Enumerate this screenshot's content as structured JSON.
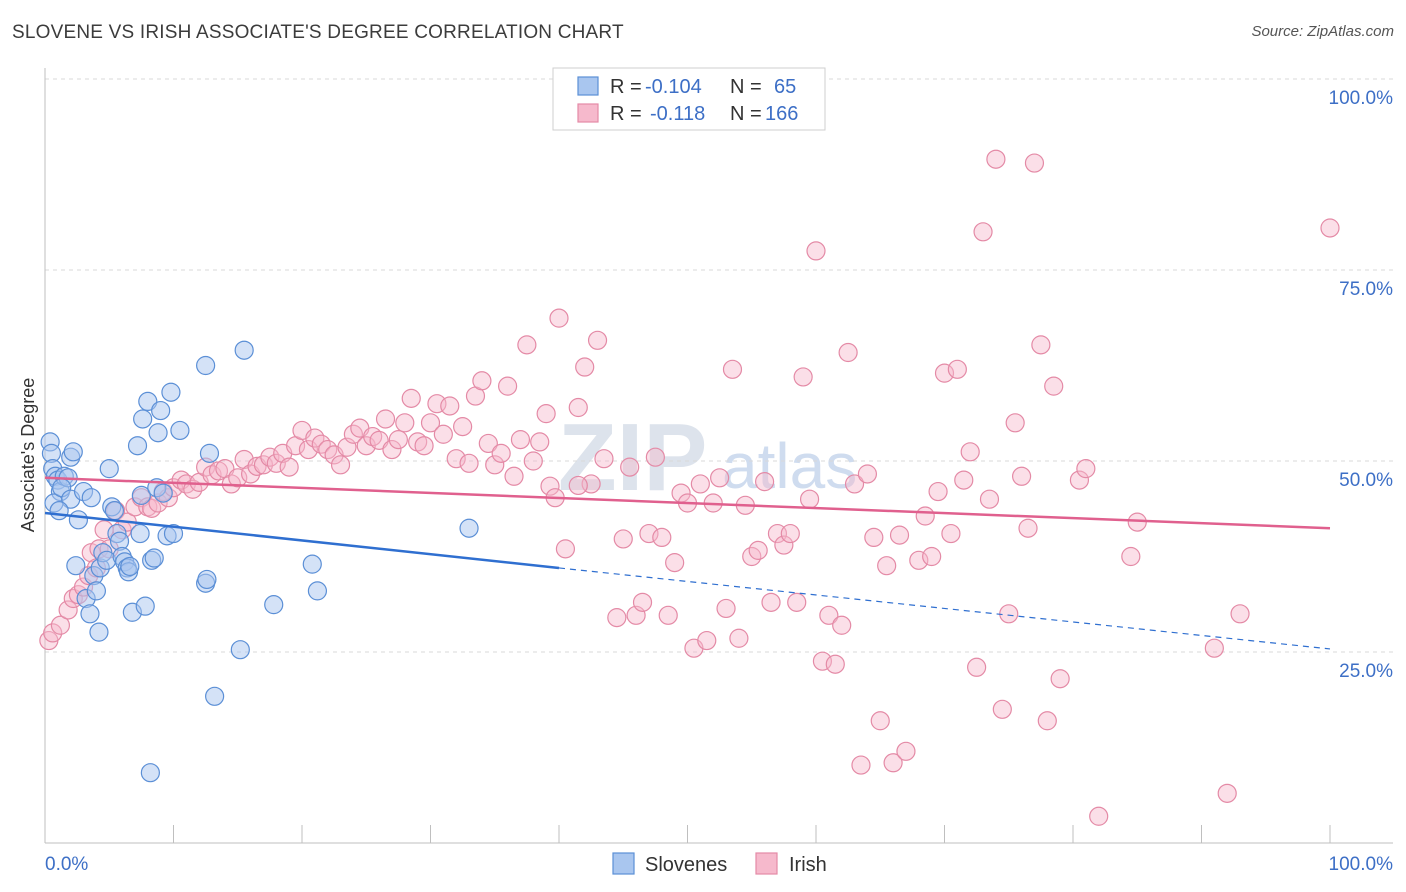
{
  "title": "SLOVENE VS IRISH ASSOCIATE'S DEGREE CORRELATION CHART",
  "source": "Source: ZipAtlas.com",
  "watermark": {
    "part1": "ZIP",
    "part2": "atlas"
  },
  "colors": {
    "blue_fill": "#a9c6ef",
    "blue_stroke": "#5b8fd6",
    "blue_line": "#2f6fd0",
    "pink_fill": "#f6b9cc",
    "pink_stroke": "#e48aa6",
    "pink_line": "#e0608e",
    "tick_text": "#3d6fc6",
    "grid": "#d9d9d9"
  },
  "legend": {
    "rows": [
      {
        "r_label": "R =",
        "r_value": "-0.104",
        "n_label": "N =",
        "n_value": "65",
        "series": "Slovenes"
      },
      {
        "r_label": "R =",
        "r_value": "-0.118",
        "n_label": "N =",
        "n_value": "166",
        "series": "Irish"
      }
    ]
  },
  "bottom_legend": [
    "Slovenes",
    "Irish"
  ],
  "chart_data": {
    "type": "scatter",
    "title": "SLOVENE VS IRISH ASSOCIATE'S DEGREE CORRELATION CHART",
    "xlabel": "",
    "ylabel": "Associate's Degree",
    "xlim": [
      0,
      100
    ],
    "ylim": [
      0,
      105
    ],
    "x_tick_labels": [
      "0.0%",
      "100.0%"
    ],
    "y_ticks": [
      25,
      50,
      75,
      100
    ],
    "y_tick_labels": [
      "25.0%",
      "50.0%",
      "75.0%",
      "100.0%"
    ],
    "series": [
      {
        "name": "Slovenes",
        "trend": {
          "x_solid": [
            0,
            40
          ],
          "y_solid": [
            43.2,
            36.0
          ],
          "x_dash": [
            40,
            100
          ],
          "y_dash": [
            36.0,
            25.4
          ]
        },
        "points": [
          [
            0.4,
            52.5
          ],
          [
            0.5,
            51
          ],
          [
            0.6,
            49
          ],
          [
            0.8,
            48
          ],
          [
            1,
            47.5
          ],
          [
            1.2,
            46
          ],
          [
            1.5,
            48
          ],
          [
            1.8,
            47.8
          ],
          [
            2,
            50.5
          ],
          [
            2.2,
            51.2
          ],
          [
            0.7,
            44.5
          ],
          [
            1.3,
            46.5
          ],
          [
            2,
            45
          ],
          [
            2.6,
            42.3
          ],
          [
            3,
            46
          ],
          [
            3.2,
            32
          ],
          [
            3.5,
            30
          ],
          [
            3.8,
            35
          ],
          [
            4,
            33
          ],
          [
            4.3,
            36
          ],
          [
            4.5,
            38
          ],
          [
            4.2,
            27.6
          ],
          [
            4.8,
            37
          ],
          [
            5,
            49
          ],
          [
            5.2,
            44
          ],
          [
            5.4,
            43.5
          ],
          [
            5.6,
            40.5
          ],
          [
            5.8,
            39.5
          ],
          [
            6,
            37.5
          ],
          [
            6.2,
            36.8
          ],
          [
            6.4,
            36
          ],
          [
            6.5,
            35.5
          ],
          [
            6.6,
            36.2
          ],
          [
            6.8,
            30.2
          ],
          [
            7.2,
            52
          ],
          [
            7.4,
            40.5
          ],
          [
            7.5,
            45.5
          ],
          [
            7.6,
            55.5
          ],
          [
            7.8,
            31
          ],
          [
            8,
            57.8
          ],
          [
            8.2,
            9.2
          ],
          [
            8.3,
            37
          ],
          [
            8.5,
            37.3
          ],
          [
            8.7,
            46.5
          ],
          [
            8.8,
            53.7
          ],
          [
            9,
            56.6
          ],
          [
            9.2,
            45.8
          ],
          [
            9.5,
            40.2
          ],
          [
            9.8,
            59
          ],
          [
            10,
            40.5
          ],
          [
            10.5,
            54
          ],
          [
            12.5,
            62.5
          ],
          [
            12.8,
            51
          ],
          [
            12.5,
            34
          ],
          [
            12.6,
            34.5
          ],
          [
            13.2,
            19.2
          ],
          [
            15.2,
            25.3
          ],
          [
            15.5,
            64.5
          ],
          [
            17.8,
            31.2
          ],
          [
            20.8,
            36.5
          ],
          [
            21.2,
            33
          ],
          [
            33,
            41.2
          ],
          [
            3.6,
            45.2
          ],
          [
            2.4,
            36.3
          ],
          [
            1.1,
            43.5
          ]
        ]
      },
      {
        "name": "Irish",
        "trend": {
          "x": [
            0,
            100
          ],
          "y": [
            47.8,
            41.2
          ]
        },
        "points": [
          [
            0.3,
            26.5
          ],
          [
            0.6,
            27.5
          ],
          [
            1.2,
            28.5
          ],
          [
            1.8,
            30.5
          ],
          [
            2.2,
            32
          ],
          [
            2.6,
            32.5
          ],
          [
            3,
            33.5
          ],
          [
            3.4,
            35
          ],
          [
            3.6,
            38
          ],
          [
            4,
            36
          ],
          [
            4.2,
            38.5
          ],
          [
            4.6,
            41
          ],
          [
            5,
            38.5
          ],
          [
            5.5,
            43.5
          ],
          [
            6,
            41
          ],
          [
            6.4,
            42
          ],
          [
            7,
            44
          ],
          [
            7.5,
            45.2
          ],
          [
            8,
            44
          ],
          [
            8.3,
            43.8
          ],
          [
            8.8,
            44.5
          ],
          [
            9.2,
            46
          ],
          [
            9.6,
            45.2
          ],
          [
            10,
            46.5
          ],
          [
            10.6,
            47.5
          ],
          [
            11,
            47
          ],
          [
            11.5,
            46.3
          ],
          [
            12,
            47.2
          ],
          [
            12.5,
            49.2
          ],
          [
            13,
            48.2
          ],
          [
            13.5,
            48.7
          ],
          [
            14,
            49
          ],
          [
            14.5,
            47
          ],
          [
            15,
            47.8
          ],
          [
            15.5,
            50.2
          ],
          [
            16,
            48.3
          ],
          [
            16.5,
            49.3
          ],
          [
            17,
            49.5
          ],
          [
            17.5,
            50.5
          ],
          [
            18,
            49.7
          ],
          [
            18.5,
            51
          ],
          [
            19,
            49.2
          ],
          [
            19.5,
            52
          ],
          [
            20,
            54
          ],
          [
            20.5,
            51.5
          ],
          [
            21,
            53
          ],
          [
            21.5,
            52.2
          ],
          [
            22,
            51.5
          ],
          [
            22.5,
            50.8
          ],
          [
            23,
            49.5
          ],
          [
            23.5,
            51.8
          ],
          [
            24,
            53.5
          ],
          [
            24.5,
            54.3
          ],
          [
            25,
            52
          ],
          [
            25.5,
            53.2
          ],
          [
            26,
            52.7
          ],
          [
            26.5,
            55.5
          ],
          [
            27,
            51.5
          ],
          [
            27.5,
            52.8
          ],
          [
            28,
            55
          ],
          [
            28.5,
            58.2
          ],
          [
            29,
            52.5
          ],
          [
            29.5,
            52
          ],
          [
            30,
            55
          ],
          [
            30.5,
            57.5
          ],
          [
            31,
            53.5
          ],
          [
            31.5,
            57.2
          ],
          [
            32,
            50.3
          ],
          [
            32.5,
            54.5
          ],
          [
            33,
            49.7
          ],
          [
            33.5,
            58.5
          ],
          [
            34,
            60.5
          ],
          [
            34.5,
            52.3
          ],
          [
            35,
            49.5
          ],
          [
            35.5,
            51
          ],
          [
            36,
            59.8
          ],
          [
            36.5,
            48
          ],
          [
            37,
            52.8
          ],
          [
            37.5,
            65.2
          ],
          [
            38,
            50
          ],
          [
            38.5,
            52.5
          ],
          [
            39,
            56.2
          ],
          [
            39.3,
            46.7
          ],
          [
            39.7,
            45.2
          ],
          [
            40,
            68.7
          ],
          [
            40.5,
            38.5
          ],
          [
            41.5,
            57
          ],
          [
            42,
            62.3
          ],
          [
            42.5,
            47
          ],
          [
            43,
            65.8
          ],
          [
            43.5,
            50.3
          ],
          [
            44.5,
            29.5
          ],
          [
            45,
            39.8
          ],
          [
            45.5,
            49.2
          ],
          [
            46,
            29.8
          ],
          [
            46.5,
            31.5
          ],
          [
            47,
            40.5
          ],
          [
            47.5,
            50.5
          ],
          [
            48,
            40
          ],
          [
            48.5,
            29.8
          ],
          [
            49,
            36.7
          ],
          [
            49.5,
            45.8
          ],
          [
            50,
            44.5
          ],
          [
            50.5,
            25.5
          ],
          [
            51,
            47
          ],
          [
            51.5,
            26.5
          ],
          [
            52,
            44.5
          ],
          [
            52.5,
            47.8
          ],
          [
            53,
            30.7
          ],
          [
            53.5,
            62
          ],
          [
            54,
            26.8
          ],
          [
            54.5,
            44.2
          ],
          [
            55,
            37.5
          ],
          [
            55.5,
            38.3
          ],
          [
            56,
            47.3
          ],
          [
            56.5,
            31.5
          ],
          [
            57,
            40.5
          ],
          [
            57.5,
            39
          ],
          [
            58,
            40.5
          ],
          [
            58.5,
            31.5
          ],
          [
            59,
            61
          ],
          [
            59.5,
            45
          ],
          [
            60,
            77.5
          ],
          [
            60.5,
            23.8
          ],
          [
            61,
            29.8
          ],
          [
            61.5,
            23.4
          ],
          [
            62,
            28.5
          ],
          [
            62.5,
            64.2
          ],
          [
            63,
            47
          ],
          [
            63.5,
            10.2
          ],
          [
            64,
            48.3
          ],
          [
            64.5,
            40
          ],
          [
            65,
            16
          ],
          [
            65.5,
            36.3
          ],
          [
            66,
            10.5
          ],
          [
            66.5,
            40.3
          ],
          [
            67,
            12
          ],
          [
            68,
            37
          ],
          [
            68.5,
            42.8
          ],
          [
            69,
            37.5
          ],
          [
            69.5,
            46
          ],
          [
            70,
            61.5
          ],
          [
            70.5,
            40.5
          ],
          [
            71,
            62
          ],
          [
            71.5,
            47.5
          ],
          [
            72,
            51.2
          ],
          [
            72.5,
            23
          ],
          [
            73,
            80
          ],
          [
            73.5,
            45
          ],
          [
            74,
            89.5
          ],
          [
            74.5,
            17.5
          ],
          [
            75,
            30
          ],
          [
            75.5,
            55
          ],
          [
            76,
            48
          ],
          [
            76.5,
            41.2
          ],
          [
            77,
            89
          ],
          [
            77.5,
            65.2
          ],
          [
            78,
            16
          ],
          [
            78.5,
            59.8
          ],
          [
            79,
            21.5
          ],
          [
            80.5,
            47.5
          ],
          [
            81,
            49
          ],
          [
            82,
            3.5
          ],
          [
            84.5,
            37.5
          ],
          [
            85,
            42
          ],
          [
            91,
            25.5
          ],
          [
            92,
            6.5
          ],
          [
            93,
            30
          ],
          [
            100,
            80.5
          ],
          [
            41.5,
            46.8
          ]
        ]
      }
    ]
  }
}
